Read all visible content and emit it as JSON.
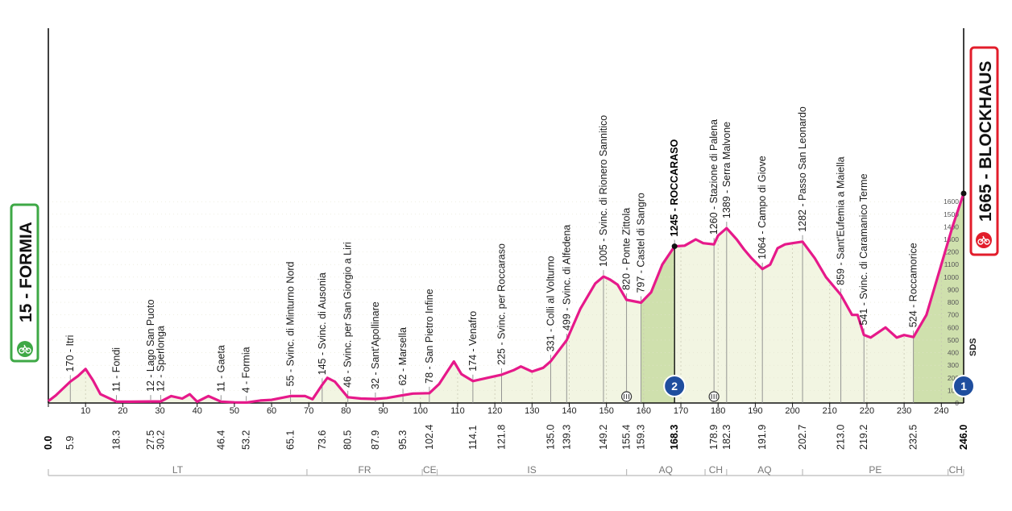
{
  "chart_data": {
    "type": "area",
    "start_label": "15 - FORMIA",
    "finish_label": "1665 - BLOCKHAUS",
    "xlim": [
      0,
      246
    ],
    "x_ticks": [
      0,
      10,
      20,
      30,
      40,
      50,
      60,
      70,
      80,
      90,
      100,
      110,
      120,
      130,
      140,
      150,
      160,
      170,
      180,
      190,
      200,
      210,
      220,
      230,
      240
    ],
    "alt_scale": [
      0,
      100,
      200,
      300,
      400,
      500,
      600,
      700,
      800,
      900,
      1000,
      1100,
      1200,
      1300,
      1400,
      1500,
      1600
    ],
    "sponsor_mark": "SDS",
    "profile": {
      "x": [
        0,
        2,
        5.9,
        8,
        10,
        12,
        14,
        18.3,
        22,
        27.5,
        30.2,
        33,
        36,
        38,
        40,
        43,
        46.4,
        50,
        53.2,
        57,
        60,
        65.1,
        69,
        71,
        73.6,
        75,
        77,
        80.5,
        84,
        87.9,
        91,
        95.3,
        98,
        102.4,
        105,
        107,
        109,
        111,
        114.1,
        118,
        121.8,
        125,
        127,
        130,
        133,
        135,
        139.3,
        143,
        147,
        149.2,
        151,
        153,
        155.4,
        159.3,
        162,
        165,
        168.3,
        171,
        174,
        176,
        178.9,
        180,
        182.3,
        185,
        187,
        189,
        191.9,
        194,
        196,
        198,
        200,
        202.7,
        206,
        209,
        213,
        216,
        217.5,
        219.2,
        221,
        225,
        228,
        230,
        232.5,
        236,
        240,
        243,
        246
      ],
      "y": [
        15,
        60,
        170,
        215,
        270,
        180,
        70,
        11,
        10,
        12,
        12,
        55,
        35,
        70,
        10,
        55,
        11,
        5,
        4,
        20,
        25,
        55,
        55,
        30,
        145,
        200,
        170,
        46,
        35,
        32,
        40,
        62,
        75,
        78,
        150,
        240,
        330,
        230,
        174,
        200,
        225,
        260,
        290,
        250,
        280,
        331,
        499,
        750,
        950,
        1005,
        980,
        940,
        820,
        797,
        880,
        1100,
        1245,
        1250,
        1300,
        1270,
        1260,
        1330,
        1389,
        1300,
        1220,
        1150,
        1064,
        1100,
        1230,
        1260,
        1270,
        1282,
        1150,
        1000,
        859,
        700,
        700,
        541,
        520,
        600,
        520,
        540,
        524,
        700,
        1100,
        1400,
        1665
      ]
    },
    "places": [
      {
        "km": "0.0",
        "x": 0,
        "y": 15,
        "name": "",
        "bold": true
      },
      {
        "km": "5.9",
        "x": 5.9,
        "y": 170,
        "name": "170 - Itri",
        "bold": false
      },
      {
        "km": "18.3",
        "x": 18.3,
        "y": 11,
        "name": "11 - Fondi",
        "bold": false
      },
      {
        "km": "27.5",
        "x": 27.5,
        "y": 12,
        "name": "12 - Lago San Puoto",
        "bold": false
      },
      {
        "km": "30.2",
        "x": 30.2,
        "y": 12,
        "name": "12 - Sperlonga",
        "bold": false
      },
      {
        "km": "46.4",
        "x": 46.4,
        "y": 11,
        "name": "11 - Gaeta",
        "bold": false
      },
      {
        "km": "53.2",
        "x": 53.2,
        "y": 4,
        "name": "4 - Formia",
        "bold": false
      },
      {
        "km": "65.1",
        "x": 65.1,
        "y": 55,
        "name": "55 - Svinc. di Minturno Nord",
        "bold": false
      },
      {
        "km": "73.6",
        "x": 73.6,
        "y": 145,
        "name": "145 - Svinc. di Ausonia",
        "bold": false
      },
      {
        "km": "80.5",
        "x": 80.5,
        "y": 46,
        "name": "46 - Svinc. per San Giorgio a Liri",
        "bold": false
      },
      {
        "km": "87.9",
        "x": 87.9,
        "y": 32,
        "name": "32 - Sant'Apollinare",
        "bold": false
      },
      {
        "km": "95.3",
        "x": 95.3,
        "y": 62,
        "name": "62 - Marsella",
        "bold": false
      },
      {
        "km": "102.4",
        "x": 102.4,
        "y": 78,
        "name": "78 - San Pietro Infine",
        "bold": false
      },
      {
        "km": "114.1",
        "x": 114.1,
        "y": 174,
        "name": "174 - Venafro",
        "bold": false
      },
      {
        "km": "121.8",
        "x": 121.8,
        "y": 225,
        "name": "225 - Svinc. per Roccaraso",
        "bold": false
      },
      {
        "km": "135.0",
        "x": 135.0,
        "y": 331,
        "name": "331 - Colli al Volturno",
        "bold": false
      },
      {
        "km": "139.3",
        "x": 139.3,
        "y": 499,
        "name": "499 - Svinc. di Alfedena",
        "bold": false
      },
      {
        "km": "149.2",
        "x": 149.2,
        "y": 1005,
        "name": "1005 - Svinc. di Rionero Sannitico",
        "bold": false
      },
      {
        "km": "155.4",
        "x": 155.4,
        "y": 820,
        "name": "820 - Ponte Zittola",
        "bold": false
      },
      {
        "km": "159.3",
        "x": 159.3,
        "y": 797,
        "name": "797 - Castel di Sangro",
        "bold": false
      },
      {
        "km": "168.3",
        "x": 168.3,
        "y": 1245,
        "name": "1245 - ROCCARASO",
        "bold": true
      },
      {
        "km": "178.9",
        "x": 178.9,
        "y": 1260,
        "name": "1260 - Stazione di Palena",
        "bold": false
      },
      {
        "km": "182.3",
        "x": 182.3,
        "y": 1389,
        "name": "1389 - Serra Malvone",
        "bold": false
      },
      {
        "km": "191.9",
        "x": 191.9,
        "y": 1064,
        "name": "1064 - Campo di Giove",
        "bold": false
      },
      {
        "km": "202.7",
        "x": 202.7,
        "y": 1282,
        "name": "1282 - Passo San Leonardo",
        "bold": false
      },
      {
        "km": "213.0",
        "x": 213.0,
        "y": 859,
        "name": "859 - Sant'Eufemia a Maiella",
        "bold": false
      },
      {
        "km": "219.2",
        "x": 219.2,
        "y": 541,
        "name": "541 - Svinc. di Caramanico Terme",
        "bold": false
      },
      {
        "km": "232.5",
        "x": 232.5,
        "y": 524,
        "name": "524 - Roccamorice",
        "bold": false
      },
      {
        "km": "246.0",
        "x": 246.0,
        "y": 1665,
        "name": "",
        "bold": true
      }
    ],
    "climbs": [
      {
        "from": 159.3,
        "to": 168.3,
        "category": "2"
      },
      {
        "from": 232.5,
        "to": 246.0,
        "category": "1"
      }
    ],
    "sprints": [
      155.4,
      178.9
    ],
    "regions": [
      {
        "from": 0,
        "to": 69.5,
        "label": "LT"
      },
      {
        "from": 69.5,
        "to": 100.5,
        "label": "FR"
      },
      {
        "from": 100.5,
        "to": 104.5,
        "label": "CE"
      },
      {
        "from": 104.5,
        "to": 155.4,
        "label": "IS"
      },
      {
        "from": 155.4,
        "to": 176.5,
        "label": "AQ"
      },
      {
        "from": 176.5,
        "to": 182.3,
        "label": "CH"
      },
      {
        "from": 182.3,
        "to": 202.7,
        "label": "AQ"
      },
      {
        "from": 202.7,
        "to": 241.8,
        "label": "PE"
      },
      {
        "from": 241.8,
        "to": 246.0,
        "label": "CH"
      }
    ],
    "colors": {
      "profile_line": "#e6198a",
      "profile_fill": "#f2f5e2",
      "climb_fill": "#cfe0ad",
      "start_border": "#3ea846",
      "finish_border": "#e21d2b",
      "icon_fill": "#3ea846",
      "finish_icon_fill": "#e21d2b",
      "cat_badge": "#1f4e9e"
    }
  }
}
